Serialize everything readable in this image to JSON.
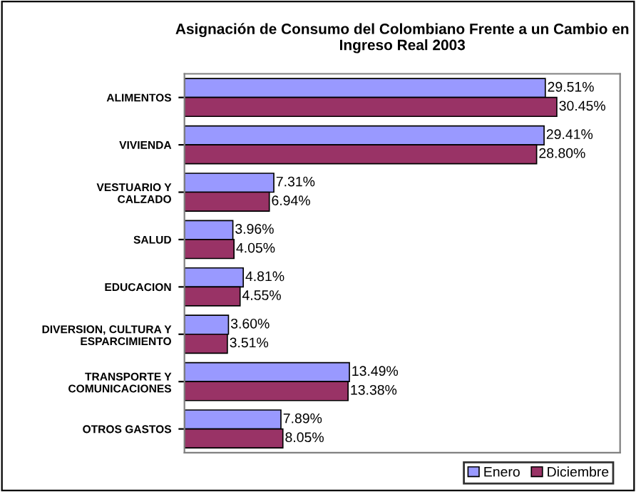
{
  "chart_data": {
    "type": "bar",
    "orientation": "horizontal",
    "title": "Asignación de Consumo del Colombiano Frente a un Cambio en\nIngreso Real 2003",
    "categories": [
      "ALIMENTOS",
      "VIVIENDA",
      "VESTUARIO Y\nCALZADO",
      "SALUD",
      "EDUCACION",
      "DIVERSION, CULTURA Y\nESPARCIMIENTO",
      "TRANSPORTE Y\nCOMUNICACIONES",
      "OTROS GASTOS"
    ],
    "series": [
      {
        "name": "Enero",
        "color": "#9999ff",
        "values": [
          29.51,
          29.41,
          7.31,
          3.96,
          4.81,
          3.6,
          13.49,
          7.89
        ],
        "value_labels": [
          "29.51%",
          "29.41%",
          "7.31%",
          "3.96%",
          "4.81%",
          "3.60%",
          "13.49%",
          "7.89%"
        ]
      },
      {
        "name": "Diciembre",
        "color": "#993366",
        "values": [
          30.45,
          28.8,
          6.94,
          4.05,
          4.55,
          3.51,
          13.38,
          8.05
        ],
        "value_labels": [
          "30.45%",
          "28.80%",
          "6.94%",
          "4.05%",
          "4.55%",
          "3.51%",
          "13.38%",
          "8.05%"
        ]
      }
    ],
    "legend": "bottom right",
    "grid": false
  }
}
